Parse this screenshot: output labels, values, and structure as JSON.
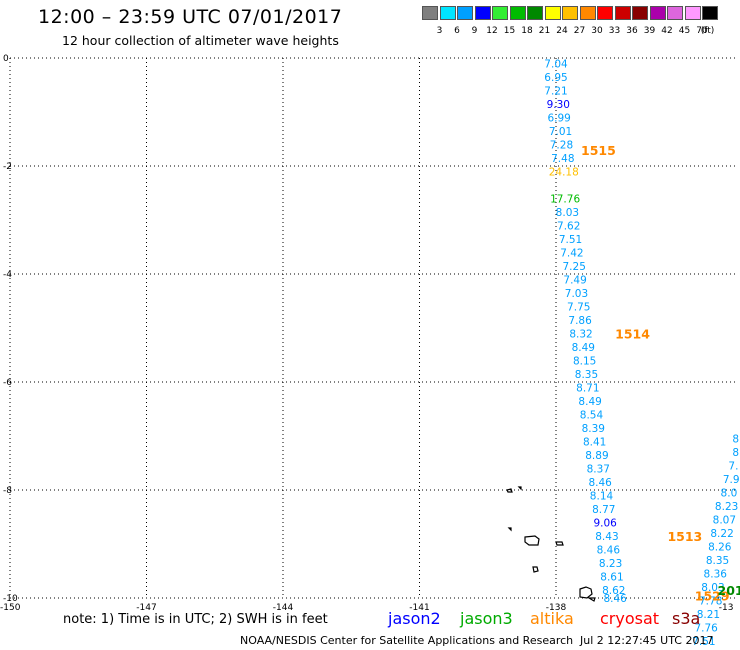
{
  "header": {
    "title": "12:00 – 23:59 UTC 07/01/2017",
    "subtitle": "12 hour collection of altimeter wave heights"
  },
  "colorbar": {
    "unit": "(ft)",
    "bins": [
      {
        "label": "3",
        "color": "#7f7f7f"
      },
      {
        "label": "6",
        "color": "#00e5ff"
      },
      {
        "label": "9",
        "color": "#00a0ff"
      },
      {
        "label": "12",
        "color": "#0000ff"
      },
      {
        "label": "15",
        "color": "#33ee33"
      },
      {
        "label": "18",
        "color": "#00bb00"
      },
      {
        "label": "21",
        "color": "#008800"
      },
      {
        "label": "24",
        "color": "#ffff00"
      },
      {
        "label": "27",
        "color": "#ffc000"
      },
      {
        "label": "30",
        "color": "#ff8800"
      },
      {
        "label": "33",
        "color": "#ff0000"
      },
      {
        "label": "36",
        "color": "#cc0000"
      },
      {
        "label": "39",
        "color": "#880000"
      },
      {
        "label": "42",
        "color": "#aa00aa"
      },
      {
        "label": "45",
        "color": "#dd66dd"
      },
      {
        "label": "70",
        "color": "#ff99ff"
      },
      {
        "label": "",
        "color": "#000000"
      }
    ]
  },
  "map": {
    "lon_range": [
      -150,
      -134
    ],
    "lat_range": [
      -10,
      0
    ],
    "lon_ticks": [
      "-150",
      "-147",
      "-144",
      "-141",
      "-138",
      "-13"
    ],
    "lat_ticks": [
      "0",
      "-2",
      "-4",
      "-6",
      "-8",
      "-10"
    ],
    "grid": "dotted"
  },
  "tracks": [
    {
      "satellite": "altika",
      "points": [
        {
          "lon": -138.0,
          "lat": -0.1,
          "v": "7.04",
          "c": "#00a0ff"
        },
        {
          "lon": -138.0,
          "lat": -0.35,
          "v": "6.95",
          "c": "#00a0ff"
        },
        {
          "lon": -138.0,
          "lat": -0.6,
          "v": "7.21",
          "c": "#00a0ff"
        },
        {
          "lon": -137.95,
          "lat": -0.85,
          "v": "9.30",
          "c": "#0000ff"
        },
        {
          "lon": -137.93,
          "lat": -1.1,
          "v": "6.99",
          "c": "#00a0ff"
        },
        {
          "lon": -137.9,
          "lat": -1.35,
          "v": "7.01",
          "c": "#00a0ff"
        },
        {
          "lon": -137.88,
          "lat": -1.6,
          "v": "7.28",
          "c": "#00a0ff"
        },
        {
          "lon": -137.85,
          "lat": -1.85,
          "v": "7.48",
          "c": "#00a0ff"
        },
        {
          "lon": -137.83,
          "lat": -2.1,
          "v": "24.18",
          "c": "#ffc000"
        },
        {
          "lon": -137.8,
          "lat": -2.6,
          "v": "17.76",
          "c": "#00bb00"
        },
        {
          "lon": -137.75,
          "lat": -2.85,
          "v": "8.03",
          "c": "#00a0ff"
        },
        {
          "lon": -137.72,
          "lat": -3.1,
          "v": "7.62",
          "c": "#00a0ff"
        },
        {
          "lon": -137.68,
          "lat": -3.35,
          "v": "7.51",
          "c": "#00a0ff"
        },
        {
          "lon": -137.65,
          "lat": -3.6,
          "v": "7.42",
          "c": "#00a0ff"
        },
        {
          "lon": -137.6,
          "lat": -3.85,
          "v": "7.25",
          "c": "#00a0ff"
        },
        {
          "lon": -137.58,
          "lat": -4.1,
          "v": "7.49",
          "c": "#00a0ff"
        },
        {
          "lon": -137.55,
          "lat": -4.35,
          "v": "7.03",
          "c": "#00a0ff"
        },
        {
          "lon": -137.5,
          "lat": -4.6,
          "v": "7.75",
          "c": "#00a0ff"
        },
        {
          "lon": -137.47,
          "lat": -4.85,
          "v": "7.86",
          "c": "#00a0ff"
        },
        {
          "lon": -137.45,
          "lat": -5.1,
          "v": "8.32",
          "c": "#00a0ff"
        },
        {
          "lon": -137.4,
          "lat": -5.35,
          "v": "8.49",
          "c": "#00a0ff"
        },
        {
          "lon": -137.37,
          "lat": -5.6,
          "v": "8.15",
          "c": "#00a0ff"
        },
        {
          "lon": -137.33,
          "lat": -5.85,
          "v": "8.35",
          "c": "#00a0ff"
        },
        {
          "lon": -137.3,
          "lat": -6.1,
          "v": "8.71",
          "c": "#00a0ff"
        },
        {
          "lon": -137.25,
          "lat": -6.35,
          "v": "8.49",
          "c": "#00a0ff"
        },
        {
          "lon": -137.22,
          "lat": -6.6,
          "v": "8.54",
          "c": "#00a0ff"
        },
        {
          "lon": -137.18,
          "lat": -6.85,
          "v": "8.39",
          "c": "#00a0ff"
        },
        {
          "lon": -137.15,
          "lat": -7.1,
          "v": "8.41",
          "c": "#00a0ff"
        },
        {
          "lon": -137.1,
          "lat": -7.35,
          "v": "8.89",
          "c": "#00a0ff"
        },
        {
          "lon": -137.07,
          "lat": -7.6,
          "v": "8.37",
          "c": "#00a0ff"
        },
        {
          "lon": -137.03,
          "lat": -7.85,
          "v": "8.46",
          "c": "#00a0ff"
        },
        {
          "lon": -137.0,
          "lat": -8.1,
          "v": "8.14",
          "c": "#00a0ff"
        },
        {
          "lon": -136.95,
          "lat": -8.35,
          "v": "8.77",
          "c": "#00a0ff"
        },
        {
          "lon": -136.92,
          "lat": -8.6,
          "v": "9.06",
          "c": "#0000ff"
        },
        {
          "lon": -136.88,
          "lat": -8.85,
          "v": "8.43",
          "c": "#00a0ff"
        },
        {
          "lon": -136.85,
          "lat": -9.1,
          "v": "8.46",
          "c": "#00a0ff"
        },
        {
          "lon": -136.8,
          "lat": -9.35,
          "v": "8.23",
          "c": "#00a0ff"
        },
        {
          "lon": -136.77,
          "lat": -9.6,
          "v": "8.61",
          "c": "#00a0ff"
        },
        {
          "lon": -136.73,
          "lat": -9.85,
          "v": "8.62",
          "c": "#00a0ff"
        },
        {
          "lon": -136.7,
          "lat": -10.0,
          "v": "8.46",
          "c": "#00a0ff"
        }
      ]
    },
    {
      "satellite": "altika",
      "points": [
        {
          "lon": -134.05,
          "lat": -7.05,
          "v": "8",
          "c": "#00a0ff"
        },
        {
          "lon": -134.05,
          "lat": -7.3,
          "v": "8",
          "c": "#00a0ff"
        },
        {
          "lon": -134.1,
          "lat": -7.55,
          "v": "7.",
          "c": "#00a0ff"
        },
        {
          "lon": -134.15,
          "lat": -7.8,
          "v": "7.9",
          "c": "#00a0ff"
        },
        {
          "lon": -134.2,
          "lat": -8.05,
          "v": "8.0",
          "c": "#00a0ff"
        },
        {
          "lon": -134.25,
          "lat": -8.3,
          "v": "8.23",
          "c": "#00a0ff"
        },
        {
          "lon": -134.3,
          "lat": -8.55,
          "v": "8.07",
          "c": "#00a0ff"
        },
        {
          "lon": -134.35,
          "lat": -8.8,
          "v": "8.22",
          "c": "#00a0ff"
        },
        {
          "lon": -134.4,
          "lat": -9.05,
          "v": "8.26",
          "c": "#00a0ff"
        },
        {
          "lon": -134.45,
          "lat": -9.3,
          "v": "8.35",
          "c": "#00a0ff"
        },
        {
          "lon": -134.5,
          "lat": -9.55,
          "v": "8.36",
          "c": "#00a0ff"
        },
        {
          "lon": -134.55,
          "lat": -9.8,
          "v": "8.03",
          "c": "#00a0ff"
        },
        {
          "lon": -134.6,
          "lat": -10.05,
          "v": "7.78",
          "c": "#00a0ff"
        },
        {
          "lon": -134.65,
          "lat": -10.3,
          "v": "8.21",
          "c": "#00a0ff"
        },
        {
          "lon": -134.7,
          "lat": -10.55,
          "v": "7.76",
          "c": "#00a0ff"
        },
        {
          "lon": -134.75,
          "lat": -10.8,
          "v": "7.51",
          "c": "#00a0ff"
        }
      ]
    }
  ],
  "time_labels": [
    {
      "text": "1515",
      "lon": -137.45,
      "lat": -1.7,
      "c": "#ff8800"
    },
    {
      "text": "1514",
      "lon": -136.7,
      "lat": -5.1,
      "c": "#ff8800"
    },
    {
      "text": "1513",
      "lon": -135.55,
      "lat": -8.85,
      "c": "#ff8800"
    },
    {
      "text": "1529",
      "lon": -134.95,
      "lat": -9.95,
      "c": "#ff8800"
    },
    {
      "text": "201",
      "lon": -134.45,
      "lat": -9.85,
      "c": "#008800"
    }
  ],
  "legend": {
    "footnote": "note: 1) Time is in UTC; 2) SWH is in feet",
    "satellites": [
      {
        "name": "jason2",
        "color": "#0000ff"
      },
      {
        "name": "jason3",
        "color": "#00aa00"
      },
      {
        "name": "altika",
        "color": "#ff8800"
      },
      {
        "name": "cryosat",
        "color": "#ff0000"
      },
      {
        "name": "s3a",
        "color": "#880000"
      }
    ]
  },
  "footer": {
    "credit": "NOAA/NESDIS Center for Satellite Applications and Research",
    "timestamp": "Jul  2 12:27:45 UTC 2017"
  }
}
